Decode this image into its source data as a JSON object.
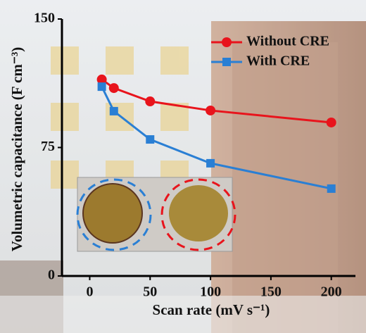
{
  "chart_data": {
    "type": "line",
    "x_label": "Scan rate (mV s⁻¹)",
    "y_label": "Volumetric capacitance (F cm⁻³)",
    "series": [
      {
        "name": "Without CRE",
        "color": "#e8141c",
        "marker": "circle",
        "x": [
          10,
          20,
          50,
          100,
          200
        ],
        "values": [
          114.7,
          109.7,
          101.9,
          96.6,
          89.6
        ]
      },
      {
        "name": "With CRE",
        "color": "#2a7fd4",
        "marker": "square",
        "x": [
          10,
          20,
          50,
          100,
          200
        ],
        "values": [
          110.5,
          96.2,
          79.7,
          65.8,
          51.0
        ]
      }
    ],
    "xlim": [
      -23,
      220
    ],
    "xticks": [
      0,
      50,
      100,
      150,
      200
    ],
    "ylim": [
      0,
      150
    ],
    "yticks": [
      0,
      75,
      150
    ],
    "legend": "upper right"
  }
}
